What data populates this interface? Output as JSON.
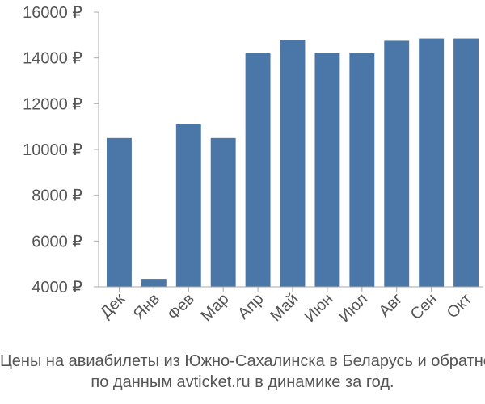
{
  "chart_data": {
    "type": "bar",
    "categories": [
      "Дек",
      "Янв",
      "Фев",
      "Мар",
      "Апр",
      "Май",
      "Июн",
      "Июл",
      "Авг",
      "Сен",
      "Окт"
    ],
    "values": [
      10500,
      4350,
      11100,
      10500,
      14200,
      14800,
      14200,
      14200,
      14750,
      14850,
      14850
    ],
    "ylim": [
      4000,
      16000
    ],
    "yticks": [
      4000,
      6000,
      8000,
      10000,
      12000,
      14000,
      16000
    ],
    "ytick_labels": [
      "4000 ₽",
      "6000 ₽",
      "8000 ₽",
      "10000 ₽",
      "12000 ₽",
      "14000 ₽",
      "16000 ₽"
    ],
    "grid": false,
    "bar_color": "#4a76a8",
    "axis_color": "#aaaaaa",
    "text_color": "#555555"
  },
  "caption": {
    "line1": "Цены на авиабилеты из Южно-Сахалинска в Беларусь и обратно",
    "line2": "по данным avticket.ru в динамике за год."
  }
}
